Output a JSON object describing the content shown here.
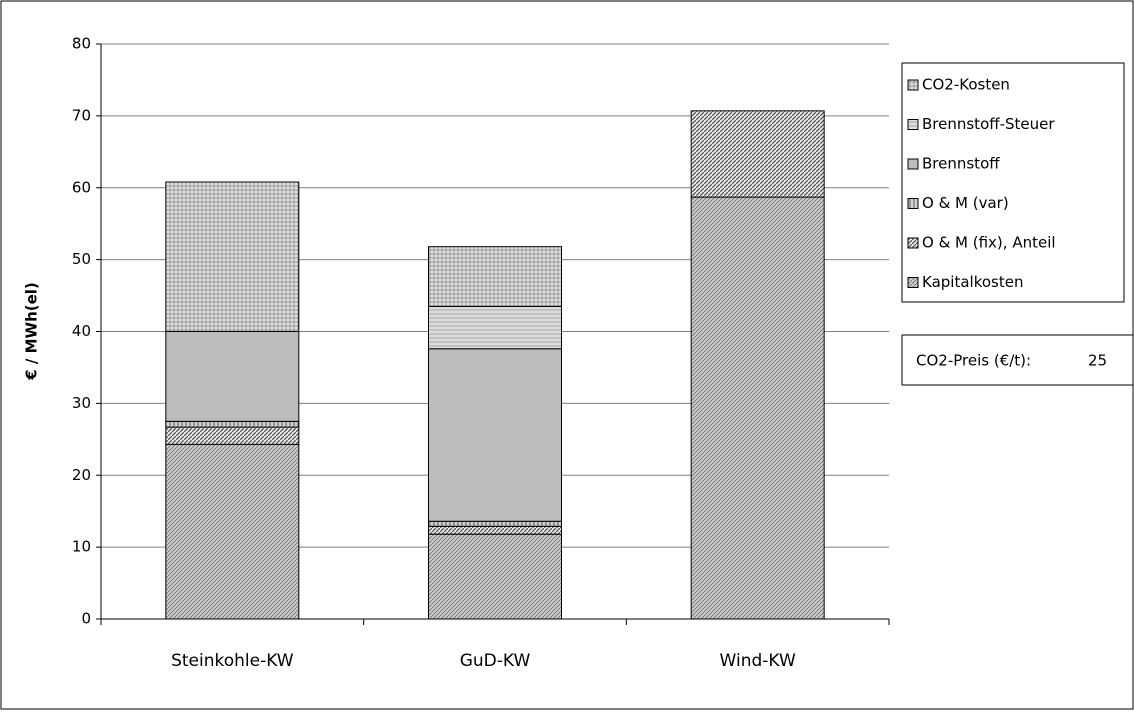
{
  "chart_data": {
    "type": "stacked_bar",
    "y_label": "€ / MWh(el)",
    "categories": [
      "Steinkohle-KW",
      "GuD-KW",
      "Wind-KW"
    ],
    "series": [
      {
        "name": "Kapitalkosten",
        "color": "#c8c8c8",
        "values": [
          24.3,
          11.8,
          58.7
        ]
      },
      {
        "name": "O & M (fix), Anteil",
        "color": "#e6e6e6",
        "values": [
          2.4,
          1.1,
          12.0
        ]
      },
      {
        "name": "O & M (var)",
        "color": "#d2d2d2",
        "values": [
          0.8,
          0.7,
          0
        ]
      },
      {
        "name": "Brennstoff",
        "color": "#bdbdbd",
        "values": [
          12.5,
          24.0,
          0
        ]
      },
      {
        "name": "Brennstoff-Steuer",
        "color": "#dcdcdc",
        "values": [
          0,
          5.9,
          0
        ]
      },
      {
        "name": "CO2-Kosten",
        "color": "#e0e0e0",
        "values": [
          20.8,
          8.3,
          0
        ]
      }
    ],
    "ylim": [
      0,
      80
    ],
    "yticks": [
      0,
      10,
      20,
      30,
      40,
      50,
      60,
      70,
      80
    ],
    "grid": true,
    "legend": "right",
    "annotation": {
      "label": "CO2-Preis (€/t):",
      "value": 25
    }
  }
}
